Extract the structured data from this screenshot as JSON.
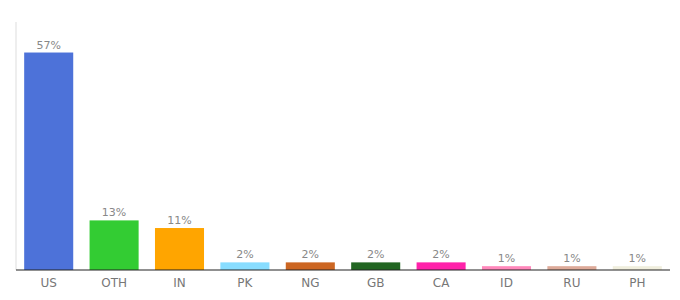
{
  "chart_data": {
    "type": "bar",
    "categories": [
      "US",
      "OTH",
      "IN",
      "PK",
      "NG",
      "GB",
      "CA",
      "ID",
      "RU",
      "PH"
    ],
    "values": [
      57,
      13,
      11,
      2,
      2,
      2,
      2,
      1,
      1,
      1
    ],
    "value_labels": [
      "57%",
      "13%",
      "11%",
      "2%",
      "2%",
      "2%",
      "2%",
      "1%",
      "1%",
      "1%"
    ],
    "colors": [
      "#4d72d9",
      "#33cc33",
      "#ffa500",
      "#88ddff",
      "#cc6622",
      "#226622",
      "#ff22aa",
      "#ff88bb",
      "#ddaa99",
      "#f0eedd"
    ],
    "ylim": [
      0,
      65
    ],
    "data_labels": true,
    "tick_labels": "x",
    "grid": false
  }
}
